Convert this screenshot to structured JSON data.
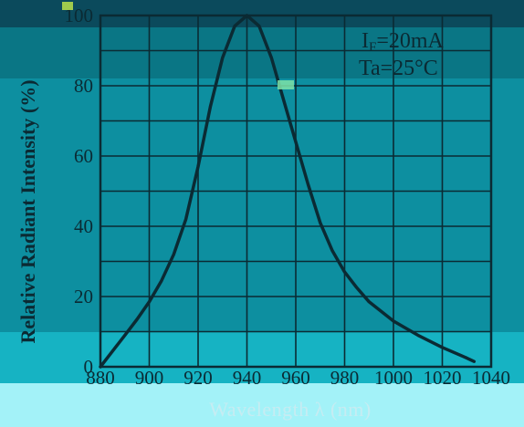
{
  "chart_data": {
    "type": "line",
    "xlabel": "Wavelength λ (nm)",
    "ylabel": "Relative Radiant Intensity (%)",
    "xlim": [
      880,
      1040
    ],
    "ylim": [
      0,
      100
    ],
    "x_ticks": [
      "880",
      "900",
      "920",
      "940",
      "960",
      "980",
      "1000",
      "1020",
      "1040"
    ],
    "y_ticks": [
      "0",
      "20",
      "40",
      "60",
      "80",
      "100"
    ],
    "grid": true,
    "annotations": [
      "I",
      "F",
      "=20mA",
      "Ta=25°C"
    ],
    "series": [
      {
        "x": [
          880,
          885,
          890,
          895,
          900,
          905,
          910,
          915,
          920,
          925,
          930,
          935,
          940,
          945,
          950,
          955,
          960,
          965,
          970,
          975,
          980,
          985,
          990,
          1000,
          1010,
          1020,
          1030,
          1033
        ],
        "y": [
          0,
          4.5,
          9,
          13.5,
          18.5,
          24.5,
          32,
          42,
          57,
          74,
          88,
          97,
          100,
          97,
          88,
          76,
          64,
          52,
          41,
          33,
          27,
          22.5,
          18.5,
          13,
          9,
          5.5,
          2.5,
          1.5
        ]
      }
    ]
  }
}
